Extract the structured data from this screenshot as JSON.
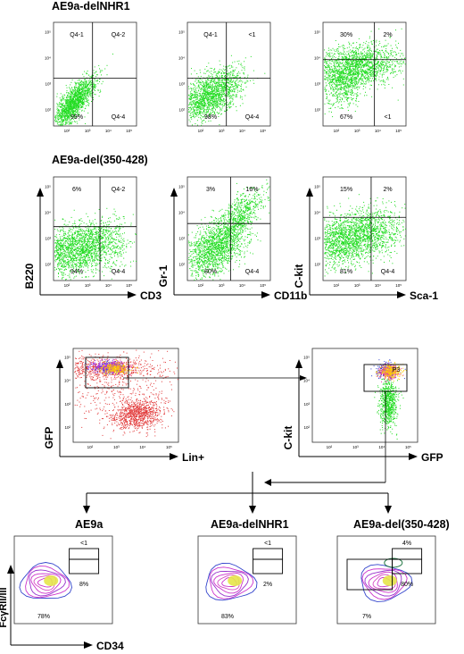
{
  "section1": {
    "title": "AE9a-delNHR1",
    "plots": [
      {
        "quads": {
          "ul": "Q4-1",
          "ur": "Q4-2",
          "ll": "99%",
          "lr": "Q4-4"
        }
      },
      {
        "quads": {
          "ul": "Q4-1",
          "ur": "<1",
          "ll": "98%",
          "lr": "Q4-4"
        }
      },
      {
        "quads": {
          "ul": "30%",
          "ur": "2%",
          "ll": "67%",
          "lr": "<1"
        }
      }
    ]
  },
  "section2": {
    "title": "AE9a-del(350-428)",
    "plots": [
      {
        "quads": {
          "ul": "6%",
          "ur": "Q4-2",
          "ll": "94%",
          "lr": "Q4-4"
        },
        "xlabel": "CD3",
        "ylabel": "B220"
      },
      {
        "quads": {
          "ul": "3%",
          "ur": "16%",
          "ll": "80%",
          "lr": "Q4-4"
        },
        "xlabel": "CD11b",
        "ylabel": "Gr-1"
      },
      {
        "quads": {
          "ul": "15%",
          "ur": "2%",
          "ll": "81%",
          "lr": "Q4-4"
        },
        "xlabel": "Sca-1",
        "ylabel": "C-kit"
      }
    ]
  },
  "gating": {
    "plot1": {
      "xlabel": "Lin+",
      "ylabel": "GFP"
    },
    "plot2": {
      "xlabel": "GFP",
      "ylabel": "C-kit",
      "gate": "P3"
    }
  },
  "bottom": {
    "ylabel": "FcγRII/III",
    "xlabel": "CD34",
    "plots": [
      {
        "title": "AE9a",
        "ur": "<1",
        "mr": "8%",
        "ll": "78%"
      },
      {
        "title": "AE9a-delNHR1",
        "ur": "<1",
        "mr": "2%",
        "ll": "83%"
      },
      {
        "title": "AE9a-del(350-428)",
        "ur": "4%",
        "mr": "80%",
        "ll": "7%"
      }
    ]
  },
  "tick_labels": {
    "x": [
      "10²",
      "10³",
      "10⁴",
      "10⁵"
    ],
    "y": [
      "10²",
      "10³",
      "10⁴",
      "10⁵"
    ]
  },
  "colors": {
    "dots": "#22dd22",
    "lineage": "#e23b3b",
    "contour_blue": "#3344cc",
    "contour_magenta": "#cc33cc",
    "contour_yellow": "#e6e64a",
    "contour_green": "#227744"
  }
}
